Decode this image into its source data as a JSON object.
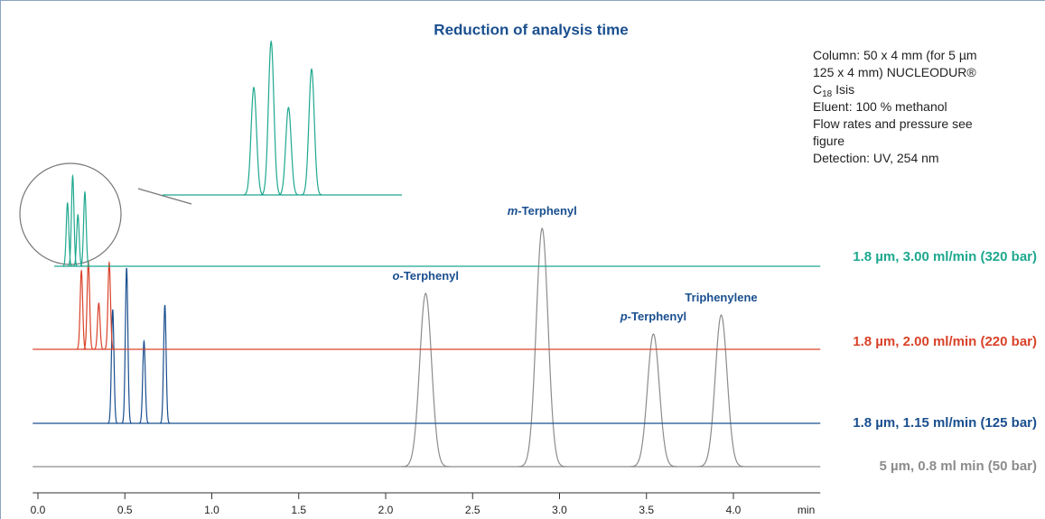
{
  "chart_data": {
    "type": "chromatogram",
    "title": "Reduction of analysis time",
    "x_label": "min",
    "xlim": [
      -0.03,
      4.5
    ],
    "xticks": [
      {
        "value": 0,
        "label": "0.0"
      },
      0.5,
      {
        "value": 1,
        "label": "1.0"
      },
      1.5,
      {
        "value": 2,
        "label": "2.0"
      },
      2.5,
      {
        "value": 3,
        "label": "3.0"
      },
      3.5,
      {
        "value": 4,
        "label": "4.0"
      }
    ],
    "series": [
      {
        "name": "5 µm, 0.8 ml min (50 bar)",
        "color": "#8c8c8c",
        "x": [
          2.23,
          2.9,
          3.54,
          3.93
        ],
        "values": [
          192,
          264,
          147,
          168
        ]
      },
      {
        "name": "1.8 µm, 1.15 ml/min (125 bar)",
        "color": "#1a4f8f",
        "x": [
          0.43,
          0.51,
          0.61,
          0.73
        ],
        "values": [
          126,
          172,
          91,
          131
        ]
      },
      {
        "name": "1.8 µm, 2.00 ml/min (220 bar)",
        "color": "#d9432a",
        "x": [
          0.25,
          0.29,
          0.35,
          0.41
        ],
        "values": [
          87,
          97,
          51,
          96
        ]
      },
      {
        "name": "1.8 µm, 3.00 ml/min (320 bar)",
        "color": "#1fa88f",
        "x": [
          0.17,
          0.2,
          0.23,
          0.27
        ],
        "values": [
          70,
          100,
          57,
          82
        ]
      }
    ],
    "annotations": [
      {
        "italic": "o",
        "text": "-Terphenyl"
      },
      {
        "italic": "m",
        "text": "-Terphenyl"
      },
      {
        "italic": "p",
        "text": "-Terphenyl"
      },
      {
        "text": "Triphenylene"
      }
    ],
    "note": [
      {
        "text": "Column: 50 x 4 mm (for 5 µm"
      },
      {
        "text": "125 x 4 mm) NUCLEODUR®"
      },
      {
        "text": "C",
        "sub": "18",
        "after": " Isis"
      },
      {
        "text": "Eluent: 100 % methanol"
      },
      {
        "text": "Flow rates and pressure see"
      },
      {
        "text": "figure"
      },
      {
        "text": "Detection: UV, 254 nm"
      }
    ]
  }
}
